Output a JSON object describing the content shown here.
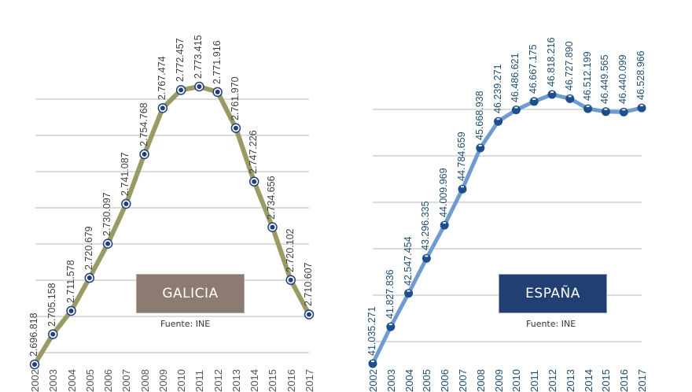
{
  "chart_data": [
    {
      "type": "line",
      "title": "GALICIA",
      "source": "Fuente: INE",
      "categories": [
        "2002",
        "2003",
        "2004",
        "2005",
        "2006",
        "2007",
        "2008",
        "2009",
        "2010",
        "2011",
        "2012",
        "2013",
        "2014",
        "2015",
        "2016",
        "2017"
      ],
      "x_tick_labels_visible": [
        "2",
        "3",
        "4",
        "5",
        "6",
        "7",
        "8",
        "9",
        "0",
        "1",
        "2",
        "3",
        "4",
        "5",
        "6",
        "7"
      ],
      "values": [
        2696818,
        2705158,
        2711578,
        2720679,
        2730097,
        2741087,
        2754768,
        2767474,
        2772457,
        2773415,
        2771916,
        2761970,
        2747226,
        2734656,
        2720102,
        2710607
      ],
      "value_labels": [
        "2.696.818",
        "2.705.158",
        "2.711.578",
        "2.720.679",
        "2.730.097",
        "2.741.087",
        "2.754.768",
        "2.767.474",
        "2.772.457",
        "2.773.415",
        "2.771.916",
        "2.761.970",
        "2.747.226",
        "2.734.656",
        "2.720.102",
        "2.710.607"
      ],
      "xlabel": "",
      "ylabel": "",
      "grid": true,
      "line_color": "#9a9a64",
      "marker_color": "#1f3f7a",
      "badge_color": "#8c7b70"
    },
    {
      "type": "line",
      "title": "ESPAÑA",
      "source": "Fuente: INE",
      "categories": [
        "2002",
        "2003",
        "2004",
        "2005",
        "2006",
        "2007",
        "2008",
        "2009",
        "2010",
        "2011",
        "2012",
        "2013",
        "2014",
        "2015",
        "2016",
        "2017"
      ],
      "x_tick_labels_visible": [
        "2",
        "3",
        "4",
        "5",
        "6",
        "7",
        "8",
        "9",
        "0",
        "1",
        "2",
        "3",
        "4",
        "5",
        "6",
        "7"
      ],
      "values": [
        41035271,
        41827836,
        42547454,
        43296335,
        44009969,
        44784659,
        45668938,
        46239271,
        46486621,
        46667175,
        46818216,
        46727890,
        46512199,
        46449565,
        46440099,
        46528966
      ],
      "value_labels": [
        "41.035.271",
        "41.827.836",
        "42.547.454",
        "43.296.335",
        "44.009.969",
        "44.784.659",
        "45.668.938",
        "46.239.271",
        "46.486.621",
        "46.667.175",
        "46.818.216",
        "46.727.890",
        "46.512.199",
        "46.449.565",
        "46.440.099",
        "46.528.966"
      ],
      "xlabel": "",
      "ylabel": "",
      "grid": true,
      "line_color": "#6f9bd1",
      "marker_color": "#1f4e8c",
      "badge_color": "#213f73"
    }
  ],
  "galicia": {
    "badge": "GALICIA",
    "source": "Fuente: INE"
  },
  "espana": {
    "badge": "ESPAÑA",
    "source": "Fuente: INE"
  }
}
